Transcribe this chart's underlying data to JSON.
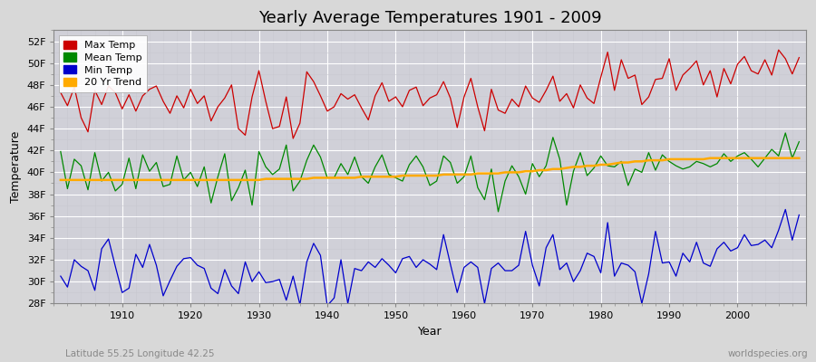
{
  "title": "Yearly Average Temperatures 1901 - 2009",
  "xlabel": "Year",
  "ylabel": "Temperature",
  "subtitle_left": "Latitude 55.25 Longitude 42.25",
  "subtitle_right": "worldspecies.org",
  "years": [
    1901,
    1902,
    1903,
    1904,
    1905,
    1906,
    1907,
    1908,
    1909,
    1910,
    1911,
    1912,
    1913,
    1914,
    1915,
    1916,
    1917,
    1918,
    1919,
    1920,
    1921,
    1922,
    1923,
    1924,
    1925,
    1926,
    1927,
    1928,
    1929,
    1930,
    1931,
    1932,
    1933,
    1934,
    1935,
    1936,
    1937,
    1938,
    1939,
    1940,
    1941,
    1942,
    1943,
    1944,
    1945,
    1946,
    1947,
    1948,
    1949,
    1950,
    1951,
    1952,
    1953,
    1954,
    1955,
    1956,
    1957,
    1958,
    1959,
    1960,
    1961,
    1962,
    1963,
    1964,
    1965,
    1966,
    1967,
    1968,
    1969,
    1970,
    1971,
    1972,
    1973,
    1974,
    1975,
    1976,
    1977,
    1978,
    1979,
    1980,
    1981,
    1982,
    1983,
    1984,
    1985,
    1986,
    1987,
    1988,
    1989,
    1990,
    1991,
    1992,
    1993,
    1994,
    1995,
    1996,
    1997,
    1998,
    1999,
    2000,
    2001,
    2002,
    2003,
    2004,
    2005,
    2006,
    2007,
    2008,
    2009
  ],
  "max_temp": [
    47.3,
    46.1,
    47.8,
    45.0,
    43.7,
    47.5,
    46.2,
    47.9,
    47.3,
    45.8,
    47.1,
    45.6,
    47.0,
    47.6,
    47.9,
    46.5,
    45.4,
    47.0,
    45.9,
    47.6,
    46.3,
    47.0,
    44.7,
    46.0,
    46.8,
    48.0,
    44.0,
    43.4,
    46.9,
    49.3,
    46.5,
    44.0,
    44.2,
    46.9,
    43.1,
    44.5,
    49.2,
    48.3,
    47.0,
    45.6,
    46.0,
    47.2,
    46.7,
    47.1,
    45.9,
    44.8,
    47.0,
    48.2,
    46.5,
    46.9,
    46.0,
    47.5,
    47.8,
    46.1,
    46.8,
    47.1,
    48.3,
    46.8,
    44.1,
    46.9,
    48.6,
    46.0,
    43.8,
    47.6,
    45.7,
    45.4,
    46.7,
    46.0,
    47.9,
    46.8,
    46.4,
    47.5,
    48.8,
    46.5,
    47.2,
    45.9,
    48.0,
    46.8,
    46.3,
    48.7,
    51.0,
    47.5,
    50.3,
    48.6,
    48.9,
    46.2,
    46.9,
    48.5,
    48.6,
    50.4,
    47.5,
    48.9,
    49.5,
    50.2,
    48.0,
    49.3,
    46.9,
    49.5,
    48.1,
    49.9,
    50.6,
    49.3,
    49.0,
    50.3,
    48.9,
    51.2,
    50.4,
    49.0,
    50.5
  ],
  "mean_temp": [
    41.9,
    38.5,
    41.2,
    40.6,
    38.4,
    41.8,
    39.2,
    40.0,
    38.3,
    38.9,
    41.3,
    38.5,
    41.6,
    40.1,
    40.9,
    38.7,
    38.9,
    41.5,
    39.3,
    40.0,
    38.7,
    40.5,
    37.2,
    39.6,
    41.7,
    37.4,
    38.6,
    40.2,
    37.0,
    41.9,
    40.5,
    39.8,
    40.3,
    42.5,
    38.3,
    39.2,
    41.1,
    42.5,
    41.4,
    39.5,
    39.5,
    40.8,
    39.8,
    41.4,
    39.6,
    39.0,
    40.5,
    41.6,
    39.8,
    39.5,
    39.2,
    40.7,
    41.5,
    40.5,
    38.8,
    39.2,
    41.5,
    40.9,
    39.0,
    39.6,
    41.5,
    38.6,
    37.5,
    40.3,
    36.4,
    39.2,
    40.6,
    39.6,
    38.0,
    40.8,
    39.6,
    40.6,
    43.2,
    41.2,
    37.0,
    40.1,
    41.8,
    39.7,
    40.4,
    41.5,
    40.6,
    40.5,
    41.0,
    38.8,
    40.3,
    40.0,
    41.8,
    40.2,
    41.6,
    41.0,
    40.6,
    40.3,
    40.5,
    41.0,
    40.8,
    40.5,
    40.8,
    41.7,
    41.0,
    41.5,
    41.8,
    41.2,
    40.5,
    41.3,
    42.1,
    41.5,
    43.6,
    41.3,
    42.8
  ],
  "min_temp": [
    30.5,
    29.5,
    32.0,
    31.4,
    31.0,
    29.2,
    33.0,
    33.9,
    31.4,
    29.0,
    29.4,
    32.5,
    31.3,
    33.4,
    31.5,
    28.7,
    30.1,
    31.4,
    32.1,
    32.2,
    31.5,
    31.2,
    29.4,
    28.9,
    31.1,
    29.6,
    28.9,
    31.8,
    30.0,
    30.9,
    29.9,
    30.0,
    30.2,
    28.3,
    30.5,
    27.9,
    31.8,
    33.5,
    32.4,
    27.8,
    28.5,
    32.0,
    28.0,
    31.2,
    31.0,
    31.8,
    31.3,
    32.1,
    31.5,
    30.8,
    32.1,
    32.3,
    31.3,
    32.0,
    31.6,
    31.1,
    34.3,
    31.6,
    29.0,
    31.3,
    31.8,
    31.3,
    28.0,
    31.2,
    31.7,
    31.0,
    31.0,
    31.5,
    34.6,
    31.5,
    29.6,
    33.1,
    34.3,
    31.1,
    31.7,
    30.0,
    31.0,
    32.6,
    32.3,
    30.8,
    35.4,
    30.5,
    31.7,
    31.5,
    30.9,
    28.0,
    30.7,
    34.6,
    31.7,
    31.8,
    30.5,
    32.6,
    31.8,
    33.6,
    31.7,
    31.4,
    33.0,
    33.6,
    32.8,
    33.1,
    34.3,
    33.3,
    33.4,
    33.8,
    33.1,
    34.7,
    36.6,
    33.8,
    36.1
  ],
  "trend": [
    39.3,
    39.3,
    39.3,
    39.3,
    39.3,
    39.3,
    39.3,
    39.3,
    39.3,
    39.3,
    39.3,
    39.3,
    39.3,
    39.3,
    39.3,
    39.3,
    39.3,
    39.3,
    39.3,
    39.3,
    39.3,
    39.3,
    39.3,
    39.3,
    39.3,
    39.3,
    39.3,
    39.3,
    39.3,
    39.3,
    39.4,
    39.4,
    39.4,
    39.4,
    39.4,
    39.4,
    39.4,
    39.5,
    39.5,
    39.5,
    39.5,
    39.5,
    39.5,
    39.5,
    39.6,
    39.6,
    39.6,
    39.6,
    39.6,
    39.6,
    39.7,
    39.7,
    39.7,
    39.7,
    39.7,
    39.7,
    39.8,
    39.8,
    39.8,
    39.8,
    39.8,
    39.9,
    39.9,
    39.9,
    39.9,
    40.0,
    40.0,
    40.0,
    40.1,
    40.1,
    40.2,
    40.2,
    40.3,
    40.3,
    40.4,
    40.5,
    40.5,
    40.6,
    40.6,
    40.7,
    40.7,
    40.8,
    40.9,
    40.9,
    41.0,
    41.0,
    41.1,
    41.1,
    41.1,
    41.2,
    41.2,
    41.2,
    41.2,
    41.2,
    41.2,
    41.3,
    41.3,
    41.3,
    41.3,
    41.3,
    41.3,
    41.3,
    41.3,
    41.3,
    41.3,
    41.3,
    41.3,
    41.3,
    41.3
  ],
  "max_color": "#cc0000",
  "mean_color": "#008800",
  "min_color": "#0000cc",
  "trend_color": "#ffaa00",
  "bg_color": "#d8d8d8",
  "plot_bg_color": "#d0d0d8",
  "grid_major_color": "#ffffff",
  "grid_minor_color": "#c8c8d0",
  "ylim": [
    28,
    53
  ],
  "yticks": [
    28,
    30,
    32,
    34,
    36,
    38,
    40,
    42,
    44,
    46,
    48,
    50,
    52
  ],
  "ytick_labels": [
    "28F",
    "30F",
    "32F",
    "34F",
    "36F",
    "38F",
    "40F",
    "42F",
    "44F",
    "46F",
    "48F",
    "50F",
    "52F"
  ],
  "xticks": [
    1910,
    1920,
    1930,
    1940,
    1950,
    1960,
    1970,
    1980,
    1990,
    2000
  ],
  "xlim": [
    1900,
    2010
  ],
  "legend_labels": [
    "Max Temp",
    "Mean Temp",
    "Min Temp",
    "20 Yr Trend"
  ],
  "title_fontsize": 13,
  "axis_label_fontsize": 9,
  "tick_fontsize": 8,
  "line_width": 0.9
}
